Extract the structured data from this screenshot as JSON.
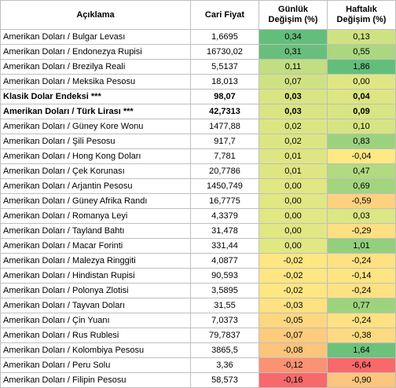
{
  "headers": {
    "description": "Açıklama",
    "price": "Cari Fiyat",
    "daily_line1": "Günlük",
    "daily_line2": "Değişim (%)",
    "weekly_line1": "Haftalık",
    "weekly_line2": "Değişim (%)"
  },
  "rows": [
    {
      "name": "Amerikan Doları / Bulgar Levası",
      "price": "1,6695",
      "daily": "0,34",
      "weekly": "0,13",
      "daily_color": "#63be7b",
      "weekly_color": "#cfe283",
      "bold": false
    },
    {
      "name": "Amerikan Doları / Endonezya Rupisi",
      "price": "16730,02",
      "daily": "0,31",
      "weekly": "0,55",
      "daily_color": "#68bf7b",
      "weekly_color": "#aad77f",
      "bold": false
    },
    {
      "name": "Amerikan Doları / Brezilya Reali",
      "price": "5,5137",
      "daily": "0,11",
      "weekly": "1,86",
      "daily_color": "#c2dd82",
      "weekly_color": "#63be7b",
      "bold": false
    },
    {
      "name": "Amerikan Doları / Meksika Pesosu",
      "price": "18,013",
      "daily": "0,07",
      "weekly": "0,00",
      "daily_color": "#cfe283",
      "weekly_color": "#dfe783",
      "bold": false
    },
    {
      "name": "Klasik Dolar Endeksi ***",
      "price": "98,07",
      "daily": "0,03",
      "weekly": "0,04",
      "daily_color": "#d9e583",
      "weekly_color": "#dce683",
      "bold": true
    },
    {
      "name": "Amerikan Doları / Türk Lirası ***",
      "price": "42,7313",
      "daily": "0,03",
      "weekly": "0,09",
      "daily_color": "#d9e583",
      "weekly_color": "#d8e583",
      "bold": true
    },
    {
      "name": "Amerikan Doları / Güney Kore Wonu",
      "price": "1477,88",
      "daily": "0,02",
      "weekly": "0,10",
      "daily_color": "#dbe683",
      "weekly_color": "#d7e483",
      "bold": false
    },
    {
      "name": "Amerikan Doları / Şili Pesosu",
      "price": "917,7",
      "daily": "0,02",
      "weekly": "0,83",
      "daily_color": "#dbe683",
      "weekly_color": "#9bd27e",
      "bold": false
    },
    {
      "name": "Amerikan Doları / Hong Kong Doları",
      "price": "7,781",
      "daily": "0,01",
      "weekly": "-0,04",
      "daily_color": "#dee683",
      "weekly_color": "#fee983",
      "bold": false
    },
    {
      "name": "Amerikan Doları / Çek Korunası",
      "price": "20,7786",
      "daily": "0,01",
      "weekly": "0,47",
      "daily_color": "#dee683",
      "weekly_color": "#b2da80",
      "bold": false
    },
    {
      "name": "Amerikan Doları / Arjantin Pesosu",
      "price": "1450,749",
      "daily": "0,00",
      "weekly": "0,69",
      "daily_color": "#e0e783",
      "weekly_color": "#a3d57f",
      "bold": false
    },
    {
      "name": "Amerikan Doları / Güney Afrika Randı",
      "price": "16,7775",
      "daily": "0,00",
      "weekly": "-0,59",
      "daily_color": "#e0e783",
      "weekly_color": "#fdd17f",
      "bold": false
    },
    {
      "name": "Amerikan Doları / Romanya Leyi",
      "price": "4,3379",
      "daily": "0,00",
      "weekly": "0,03",
      "daily_color": "#e0e783",
      "weekly_color": "#dce683",
      "bold": false
    },
    {
      "name": "Amerikan Doları / Tayland Bahtı",
      "price": "31,478",
      "daily": "0,00",
      "weekly": "-0,29",
      "daily_color": "#e0e783",
      "weekly_color": "#fedf82",
      "bold": false
    },
    {
      "name": "Amerikan Doları / Macar Forinti",
      "price": "331,44",
      "daily": "0,00",
      "weekly": "1,01",
      "daily_color": "#e0e783",
      "weekly_color": "#93cf7d",
      "bold": false
    },
    {
      "name": "Amerikan Doları / Malezya Ringgiti",
      "price": "4,0877",
      "daily": "-0,02",
      "weekly": "-0,24",
      "daily_color": "#fee683",
      "weekly_color": "#fee182",
      "bold": false
    },
    {
      "name": "Amerikan Doları / Hindistan Rupisi",
      "price": "90,593",
      "daily": "-0,02",
      "weekly": "-0,14",
      "daily_color": "#fee683",
      "weekly_color": "#fee582",
      "bold": false
    },
    {
      "name": "Amerikan Doları / Polonya Zlotisi",
      "price": "3,5895",
      "daily": "-0,02",
      "weekly": "-0,24",
      "daily_color": "#fee683",
      "weekly_color": "#fee182",
      "bold": false
    },
    {
      "name": "Amerikan Doları / Tayvan Doları",
      "price": "31,55",
      "daily": "-0,03",
      "weekly": "0,77",
      "daily_color": "#fee182",
      "weekly_color": "#9ed37e",
      "bold": false
    },
    {
      "name": "Amerikan Doları / Çin Yuanı",
      "price": "7,0373",
      "daily": "-0,05",
      "weekly": "-0,24",
      "daily_color": "#fdd780",
      "weekly_color": "#fee182",
      "bold": false
    },
    {
      "name": "Amerikan Doları / Rus Rublesi",
      "price": "79,7837",
      "daily": "-0,07",
      "weekly": "-0,38",
      "daily_color": "#fccb7e",
      "weekly_color": "#fdda81",
      "bold": false
    },
    {
      "name": "Amerikan Doları / Kolombiya Pesosu",
      "price": "3865,5",
      "daily": "-0,08",
      "weekly": "1,64",
      "daily_color": "#fcc47c",
      "weekly_color": "#6cc17b",
      "bold": false
    },
    {
      "name": "Amerikan Doları / Peru Solu",
      "price": "3,36",
      "daily": "-0,12",
      "weekly": "-6,64",
      "daily_color": "#fa9273",
      "weekly_color": "#f8696b",
      "bold": false
    },
    {
      "name": "Amerikan Doları / Filipin Pesosu",
      "price": "58,573",
      "daily": "-0,16",
      "weekly": "-0,90",
      "daily_color": "#f8696b",
      "weekly_color": "#fdc57d",
      "bold": false
    }
  ]
}
